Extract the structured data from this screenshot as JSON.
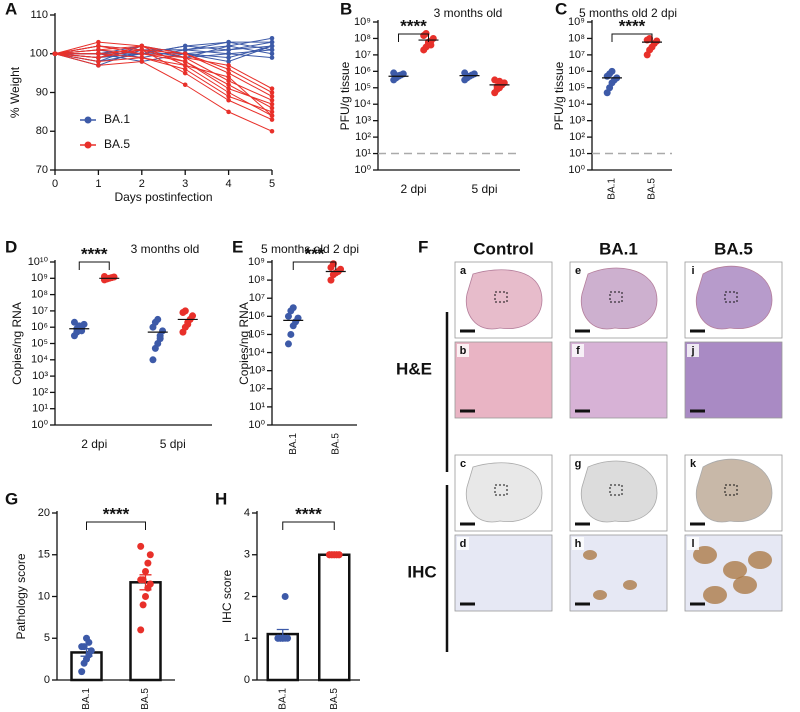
{
  "chart_data": [
    {
      "type": "line",
      "panel_label": "A",
      "ylabel": "% Weight",
      "xlabel": "Days postinfection",
      "x": [
        0,
        1,
        2,
        3,
        4,
        5
      ],
      "xlim": [
        0,
        5
      ],
      "xticks": [
        0,
        1,
        2,
        3,
        4,
        5
      ],
      "ylim": [
        70,
        110
      ],
      "yticks": [
        70,
        80,
        90,
        100,
        110
      ],
      "series": [
        {
          "name": "BA.1",
          "color": "#3d5aa8",
          "values": [
            [
              100,
              99,
              101,
              101,
              102,
              104
            ],
            [
              100,
              98,
              100,
              102,
              103,
              103
            ],
            [
              100,
              100,
              102,
              100,
              101,
              102
            ],
            [
              100,
              101,
              99,
              101,
              100,
              101
            ],
            [
              100,
              97,
              101,
              99,
              102,
              100
            ],
            [
              100,
              99,
              100,
              102,
              101,
              103
            ],
            [
              100,
              100,
              98,
              100,
              99,
              102
            ],
            [
              100,
              102,
              101,
              101,
              103,
              101
            ],
            [
              100,
              98,
              102,
              99,
              100,
              99
            ],
            [
              100,
              100,
              100,
              100,
              98,
              102
            ]
          ]
        },
        {
          "name": "BA.5",
          "color": "#e8302a",
          "values": [
            [
              100,
              103,
              102,
              99,
              97,
              91
            ],
            [
              100,
              102,
              101,
              100,
              95,
              89
            ],
            [
              100,
              101,
              100,
              98,
              92,
              86
            ],
            [
              100,
              99,
              102,
              97,
              90,
              84
            ],
            [
              100,
              98,
              99,
              96,
              89,
              85
            ],
            [
              100,
              100,
              101,
              95,
              88,
              83
            ],
            [
              100,
              97,
              98,
              92,
              85,
              80
            ],
            [
              100,
              102,
              100,
              99,
              93,
              88
            ],
            [
              100,
              101,
              102,
              100,
              96,
              90
            ],
            [
              100,
              99,
              101,
              98,
              91,
              87
            ],
            [
              100,
              100,
              99,
              97,
              94,
              84
            ]
          ]
        }
      ]
    },
    {
      "type": "dotplot",
      "panel_label": "B",
      "title": "3 months old",
      "ylabel": "PFU/g tissue",
      "significance": "****",
      "categories": [
        "2 dpi",
        "5 dpi"
      ],
      "log_scale": true,
      "detection_limit": 10,
      "ylim": [
        1,
        1000000000
      ],
      "yticks": [
        {
          "value": 1,
          "label": "10⁰"
        },
        {
          "value": 10,
          "label": "10¹"
        },
        {
          "value": 100,
          "label": "10²"
        },
        {
          "value": 1000,
          "label": "10³"
        },
        {
          "value": 10000,
          "label": "10⁴"
        },
        {
          "value": 100000,
          "label": "10⁵"
        },
        {
          "value": 1000000,
          "label": "10⁶"
        },
        {
          "value": 10000000,
          "label": "10⁷"
        },
        {
          "value": 100000000,
          "label": "10⁸"
        },
        {
          "value": 1000000000,
          "label": "10⁹"
        }
      ],
      "series": [
        {
          "color": "#3d5aa8",
          "values": [
            [
              300000,
              400000,
              500000,
              600000,
              700000,
              800000,
              450000,
              550000
            ],
            [
              300000,
              400000,
              500000,
              600000,
              700000,
              800000,
              450000
            ]
          ],
          "means": [
            500000,
            550000
          ]
        },
        {
          "color": "#e8302a",
          "values": [
            [
              20000000,
              30000000,
              50000000,
              70000000,
              100000000,
              150000000,
              200000000,
              60000000,
              40000000
            ],
            [
              50000,
              80000,
              100000,
              150000,
              200000,
              300000,
              120000,
              250000
            ]
          ],
          "means": [
            80000000,
            150000
          ]
        }
      ]
    },
    {
      "type": "dotplot",
      "panel_label": "C",
      "title": "5 months old 2 dpi",
      "ylabel": "PFU/g tissue",
      "significance": "****",
      "categories": [
        "BA.1",
        "BA.5"
      ],
      "colors": [
        "#3d5aa8",
        "#e8302a"
      ],
      "log_scale": true,
      "detection_limit": 10,
      "ylim": [
        1,
        1000000000
      ],
      "yticks": [
        {
          "value": 1,
          "label": "10⁰"
        },
        {
          "value": 10,
          "label": "10¹"
        },
        {
          "value": 100,
          "label": "10²"
        },
        {
          "value": 1000,
          "label": "10³"
        },
        {
          "value": 10000,
          "label": "10⁴"
        },
        {
          "value": 100000,
          "label": "10⁵"
        },
        {
          "value": 1000000,
          "label": "10⁶"
        },
        {
          "value": 10000000,
          "label": "10⁷"
        },
        {
          "value": 100000000,
          "label": "10⁸"
        },
        {
          "value": 1000000000,
          "label": "10⁹"
        }
      ],
      "values": [
        [
          50000,
          100000,
          200000,
          300000,
          400000,
          500000,
          700000,
          1000000
        ],
        [
          10000000,
          20000000,
          30000000,
          50000000,
          70000000,
          80000000,
          100000000
        ]
      ],
      "means": [
        400000,
        60000000
      ]
    },
    {
      "type": "dotplot",
      "panel_label": "D",
      "title": "3 months old",
      "ylabel": "Copies/ng RNA",
      "significance": "****",
      "categories": [
        "2 dpi",
        "5 dpi"
      ],
      "log_scale": true,
      "ylim": [
        1,
        10000000000
      ],
      "yticks": [
        {
          "value": 1,
          "label": "10⁰"
        },
        {
          "value": 10,
          "label": "10¹"
        },
        {
          "value": 100,
          "label": "10²"
        },
        {
          "value": 1000,
          "label": "10³"
        },
        {
          "value": 10000,
          "label": "10⁴"
        },
        {
          "value": 100000,
          "label": "10⁵"
        },
        {
          "value": 1000000,
          "label": "10⁶"
        },
        {
          "value": 10000000,
          "label": "10⁷"
        },
        {
          "value": 100000000,
          "label": "10⁸"
        },
        {
          "value": 1000000000,
          "label": "10⁹"
        },
        {
          "value": 10000000000,
          "label": "10¹⁰"
        }
      ],
      "series": [
        {
          "color": "#3d5aa8",
          "values": [
            [
              300000,
              500000,
              700000,
              1000000,
              1500000,
              2000000,
              800000,
              1200000,
              600000
            ],
            [
              10000,
              50000,
              100000,
              300000,
              600000,
              1000000,
              2000000,
              3000000,
              200000
            ]
          ],
          "means": [
            800000,
            500000
          ]
        },
        {
          "color": "#e8302a",
          "values": [
            [
              800000000,
              900000000,
              1000000000,
              1100000000,
              1200000000,
              1300000000,
              950000000
            ],
            [
              500000,
              1000000,
              2000000,
              3000000,
              5000000,
              8000000,
              10000000,
              1500000
            ]
          ],
          "means": [
            1000000000,
            3000000
          ]
        }
      ]
    },
    {
      "type": "dotplot",
      "panel_label": "E",
      "title": "5 months old 2 dpi",
      "ylabel": "Copies/ng RNA",
      "significance": "***",
      "categories": [
        "BA.1",
        "BA.5"
      ],
      "colors": [
        "#3d5aa8",
        "#e8302a"
      ],
      "log_scale": true,
      "ylim": [
        1,
        1000000000
      ],
      "yticks": [
        {
          "value": 1,
          "label": "10⁰"
        },
        {
          "value": 10,
          "label": "10¹"
        },
        {
          "value": 100,
          "label": "10²"
        },
        {
          "value": 1000,
          "label": "10³"
        },
        {
          "value": 10000,
          "label": "10⁴"
        },
        {
          "value": 100000,
          "label": "10⁵"
        },
        {
          "value": 1000000,
          "label": "10⁶"
        },
        {
          "value": 10000000,
          "label": "10⁷"
        },
        {
          "value": 100000000,
          "label": "10⁸"
        },
        {
          "value": 1000000000,
          "label": "10⁹"
        }
      ],
      "values": [
        [
          30000,
          100000,
          300000,
          500000,
          800000,
          1000000,
          2000000,
          3000000
        ],
        [
          100000000,
          200000000,
          250000000,
          300000000,
          400000000,
          500000000,
          800000000
        ]
      ],
      "means": [
        600000,
        300000000
      ]
    },
    {
      "type": "bar",
      "panel_label": "G",
      "ylabel": "Pathology score",
      "significance": "****",
      "categories": [
        "BA.1",
        "BA.5"
      ],
      "colors": [
        "#3d5aa8",
        "#e8302a"
      ],
      "ylim": [
        0,
        20
      ],
      "yticks": [
        0,
        5,
        10,
        15,
        20
      ],
      "values": [
        3.3,
        11.7
      ],
      "errors": [
        0.45,
        0.9
      ],
      "points": [
        [
          1,
          2,
          2.5,
          3,
          3.5,
          4,
          4,
          5,
          4.5
        ],
        [
          6,
          9,
          10,
          11,
          11.5,
          12,
          12,
          13,
          14,
          15,
          16
        ]
      ]
    },
    {
      "type": "bar",
      "panel_label": "H",
      "ylabel": "IHC score",
      "significance": "****",
      "categories": [
        "BA.1",
        "BA.5"
      ],
      "colors": [
        "#3d5aa8",
        "#e8302a"
      ],
      "ylim": [
        0,
        4
      ],
      "yticks": [
        0,
        1,
        2,
        3,
        4
      ],
      "values": [
        1.1,
        3.0
      ],
      "errors": [
        0.11,
        0
      ],
      "points": [
        [
          1,
          1,
          1,
          1,
          1,
          1,
          1,
          1,
          2
        ],
        [
          3,
          3,
          3,
          3,
          3,
          3,
          3,
          3,
          3,
          3
        ]
      ]
    }
  ],
  "histology": {
    "panel_label": "F",
    "columns": [
      "Control",
      "BA.1",
      "BA.5"
    ],
    "rows": [
      "H&E",
      "IHC"
    ],
    "subpanels": [
      [
        "a",
        "b",
        "c",
        "d"
      ],
      [
        "e",
        "f",
        "g",
        "h"
      ],
      [
        "i",
        "j",
        "k",
        "l"
      ]
    ]
  }
}
